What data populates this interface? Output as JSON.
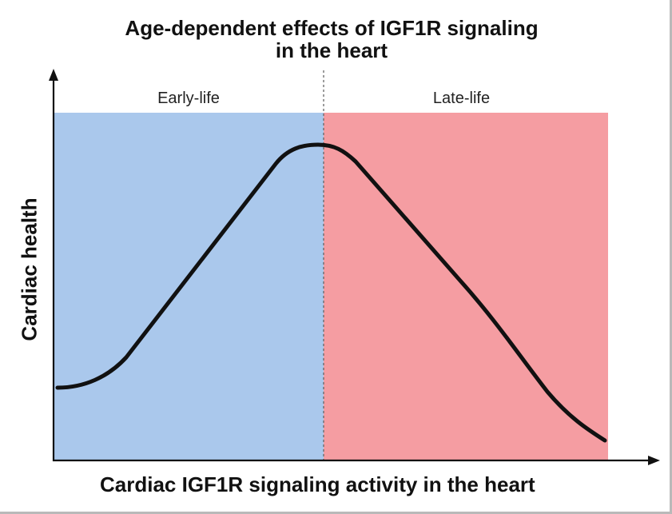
{
  "title": {
    "line1": "Age-dependent effects of IGF1R signaling",
    "line2": "in the heart"
  },
  "axes": {
    "x_label": "Cardiac IGF1R signaling activity in the heart",
    "y_label": "Cardiac health"
  },
  "regions": [
    {
      "label": "Early-life",
      "color": "#aac8ec"
    },
    {
      "label": "Late-life",
      "color": "#f59da2"
    }
  ],
  "colors": {
    "curve": "#111111",
    "axis": "#111111",
    "divider": "#666666"
  },
  "icons": {
    "x_axis_arrow": "arrow-right-icon",
    "y_axis_arrow": "arrow-up-icon"
  }
}
